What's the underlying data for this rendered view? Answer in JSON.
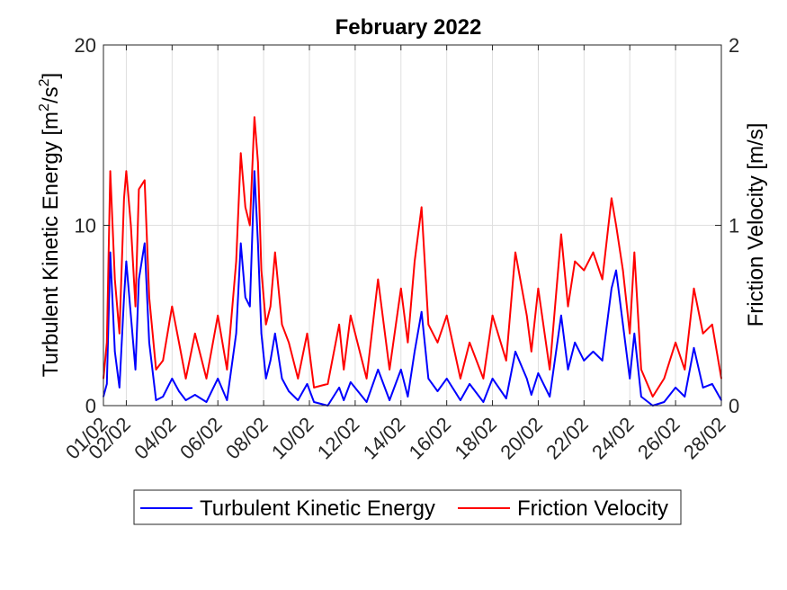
{
  "chart_data": {
    "type": "line",
    "title": "February 2022",
    "x_tick_labels": [
      "01/02",
      "02/02",
      "04/02",
      "06/02",
      "08/02",
      "10/02",
      "12/02",
      "14/02",
      "16/02",
      "18/02",
      "20/02",
      "22/02",
      "24/02",
      "26/02",
      "28/02"
    ],
    "x_tick_days": [
      1,
      2,
      4,
      6,
      8,
      10,
      12,
      14,
      16,
      18,
      20,
      22,
      24,
      26,
      28
    ],
    "xlim_days": [
      1,
      28
    ],
    "grid": true,
    "legend_position": "bottom-outside",
    "y_left": {
      "label_main": "Turbulent Kinetic Energy [m",
      "label_sup1": "2",
      "label_mid": "/s",
      "label_sup2": "2",
      "label_end": "]",
      "ylim": [
        0,
        20
      ],
      "ticks": [
        "0",
        "10",
        "20"
      ]
    },
    "y_right": {
      "label": "Friction Velocity [m/s]",
      "ylim": [
        0,
        2
      ],
      "ticks": [
        "0",
        "1",
        "2"
      ]
    },
    "series": [
      {
        "name": "Turbulent Kinetic Energy",
        "axis": "left",
        "color": "#0000ff",
        "x_days": [
          1.0,
          1.15,
          1.3,
          1.5,
          1.7,
          1.9,
          2.0,
          2.2,
          2.4,
          2.55,
          2.8,
          3.0,
          3.3,
          3.6,
          4.0,
          4.3,
          4.6,
          5.0,
          5.5,
          6.0,
          6.4,
          6.8,
          7.0,
          7.2,
          7.4,
          7.6,
          7.75,
          7.9,
          8.1,
          8.3,
          8.5,
          8.8,
          9.1,
          9.5,
          9.9,
          10.2,
          10.8,
          11.3,
          11.5,
          11.8,
          12.5,
          13.0,
          13.5,
          14.0,
          14.3,
          14.6,
          14.9,
          15.2,
          15.6,
          16.0,
          16.6,
          17.0,
          17.6,
          18.0,
          18.6,
          19.0,
          19.5,
          19.7,
          20.0,
          20.5,
          21.0,
          21.3,
          21.6,
          22.0,
          22.4,
          22.8,
          23.2,
          23.4,
          23.7,
          24.0,
          24.2,
          24.5,
          25.0,
          25.5,
          26.0,
          26.4,
          26.8,
          27.2,
          27.6,
          28.0
        ],
        "y": [
          0.5,
          1.2,
          8.5,
          3.0,
          1.0,
          6.0,
          8.0,
          5.0,
          2.0,
          7.0,
          9.0,
          3.5,
          0.3,
          0.5,
          1.5,
          0.8,
          0.3,
          0.6,
          0.2,
          1.5,
          0.3,
          4.0,
          9.0,
          6.0,
          5.5,
          13.0,
          9.0,
          4.0,
          1.5,
          2.5,
          4.0,
          1.5,
          0.8,
          0.3,
          1.2,
          0.2,
          0.0,
          1.0,
          0.3,
          1.3,
          0.2,
          2.0,
          0.3,
          2.0,
          0.5,
          3.0,
          5.2,
          1.5,
          0.8,
          1.5,
          0.3,
          1.2,
          0.2,
          1.5,
          0.4,
          3.0,
          1.5,
          0.6,
          1.8,
          0.5,
          5.0,
          2.0,
          3.5,
          2.5,
          3.0,
          2.5,
          6.5,
          7.5,
          4.5,
          1.5,
          4.0,
          0.5,
          0.0,
          0.2,
          1.0,
          0.5,
          3.2,
          1.0,
          1.2,
          0.3
        ]
      },
      {
        "name": "Friction Velocity",
        "axis": "right",
        "color": "#ff0000",
        "x_days": [
          1.0,
          1.15,
          1.3,
          1.5,
          1.7,
          1.9,
          2.0,
          2.2,
          2.4,
          2.55,
          2.8,
          3.0,
          3.3,
          3.6,
          4.0,
          4.3,
          4.6,
          5.0,
          5.5,
          6.0,
          6.4,
          6.8,
          7.0,
          7.2,
          7.4,
          7.6,
          7.75,
          7.9,
          8.1,
          8.3,
          8.5,
          8.8,
          9.1,
          9.5,
          9.9,
          10.2,
          10.8,
          11.3,
          11.5,
          11.8,
          12.5,
          13.0,
          13.5,
          14.0,
          14.3,
          14.6,
          14.9,
          15.2,
          15.6,
          16.0,
          16.6,
          17.0,
          17.6,
          18.0,
          18.6,
          19.0,
          19.5,
          19.7,
          20.0,
          20.5,
          21.0,
          21.3,
          21.6,
          22.0,
          22.4,
          22.8,
          23.2,
          23.4,
          23.7,
          24.0,
          24.2,
          24.5,
          25.0,
          25.5,
          26.0,
          26.4,
          26.8,
          27.2,
          27.6,
          28.0
        ],
        "y": [
          0.15,
          0.35,
          1.3,
          0.7,
          0.4,
          1.15,
          1.3,
          1.0,
          0.55,
          1.2,
          1.25,
          0.6,
          0.2,
          0.25,
          0.55,
          0.35,
          0.15,
          0.4,
          0.15,
          0.5,
          0.2,
          0.8,
          1.4,
          1.1,
          1.0,
          1.6,
          1.35,
          0.75,
          0.45,
          0.55,
          0.85,
          0.45,
          0.35,
          0.15,
          0.4,
          0.1,
          0.12,
          0.45,
          0.2,
          0.5,
          0.15,
          0.7,
          0.2,
          0.65,
          0.35,
          0.8,
          1.1,
          0.45,
          0.35,
          0.5,
          0.15,
          0.35,
          0.15,
          0.5,
          0.25,
          0.85,
          0.5,
          0.3,
          0.65,
          0.2,
          0.95,
          0.55,
          0.8,
          0.75,
          0.85,
          0.7,
          1.15,
          1.0,
          0.75,
          0.4,
          0.85,
          0.2,
          0.05,
          0.15,
          0.35,
          0.2,
          0.65,
          0.4,
          0.45,
          0.15
        ]
      }
    ]
  },
  "colors": {
    "axis": "#262626",
    "grid": "#dfdfdf",
    "tke": "#0000ff",
    "friction": "#ff0000"
  }
}
